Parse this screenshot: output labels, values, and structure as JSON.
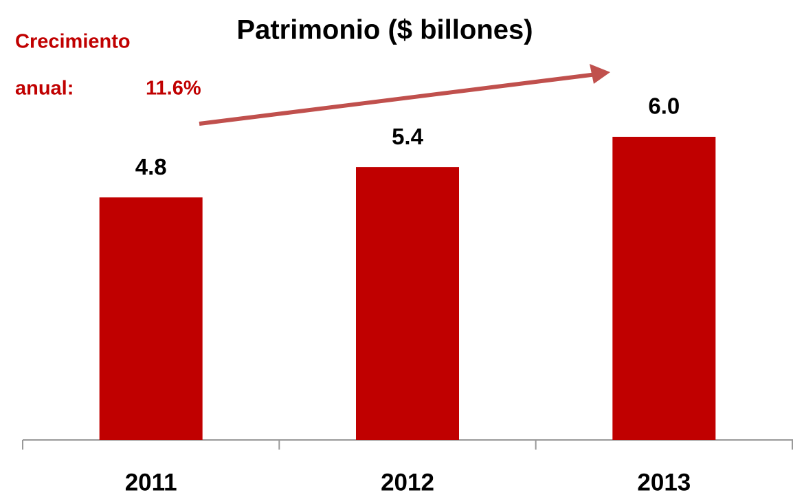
{
  "chart_data": {
    "type": "bar",
    "title": "Patrimonio ($ billones)",
    "categories": [
      "2011",
      "2012",
      "2013"
    ],
    "values": [
      4.8,
      5.4,
      6.0
    ],
    "value_labels": [
      "4.8",
      "5.4",
      "6.0"
    ],
    "color": "#c00000",
    "annotation": {
      "text": [
        "Crecimiento",
        "anual:"
      ],
      "value_label": "11.6%",
      "color": "#c00000"
    }
  }
}
